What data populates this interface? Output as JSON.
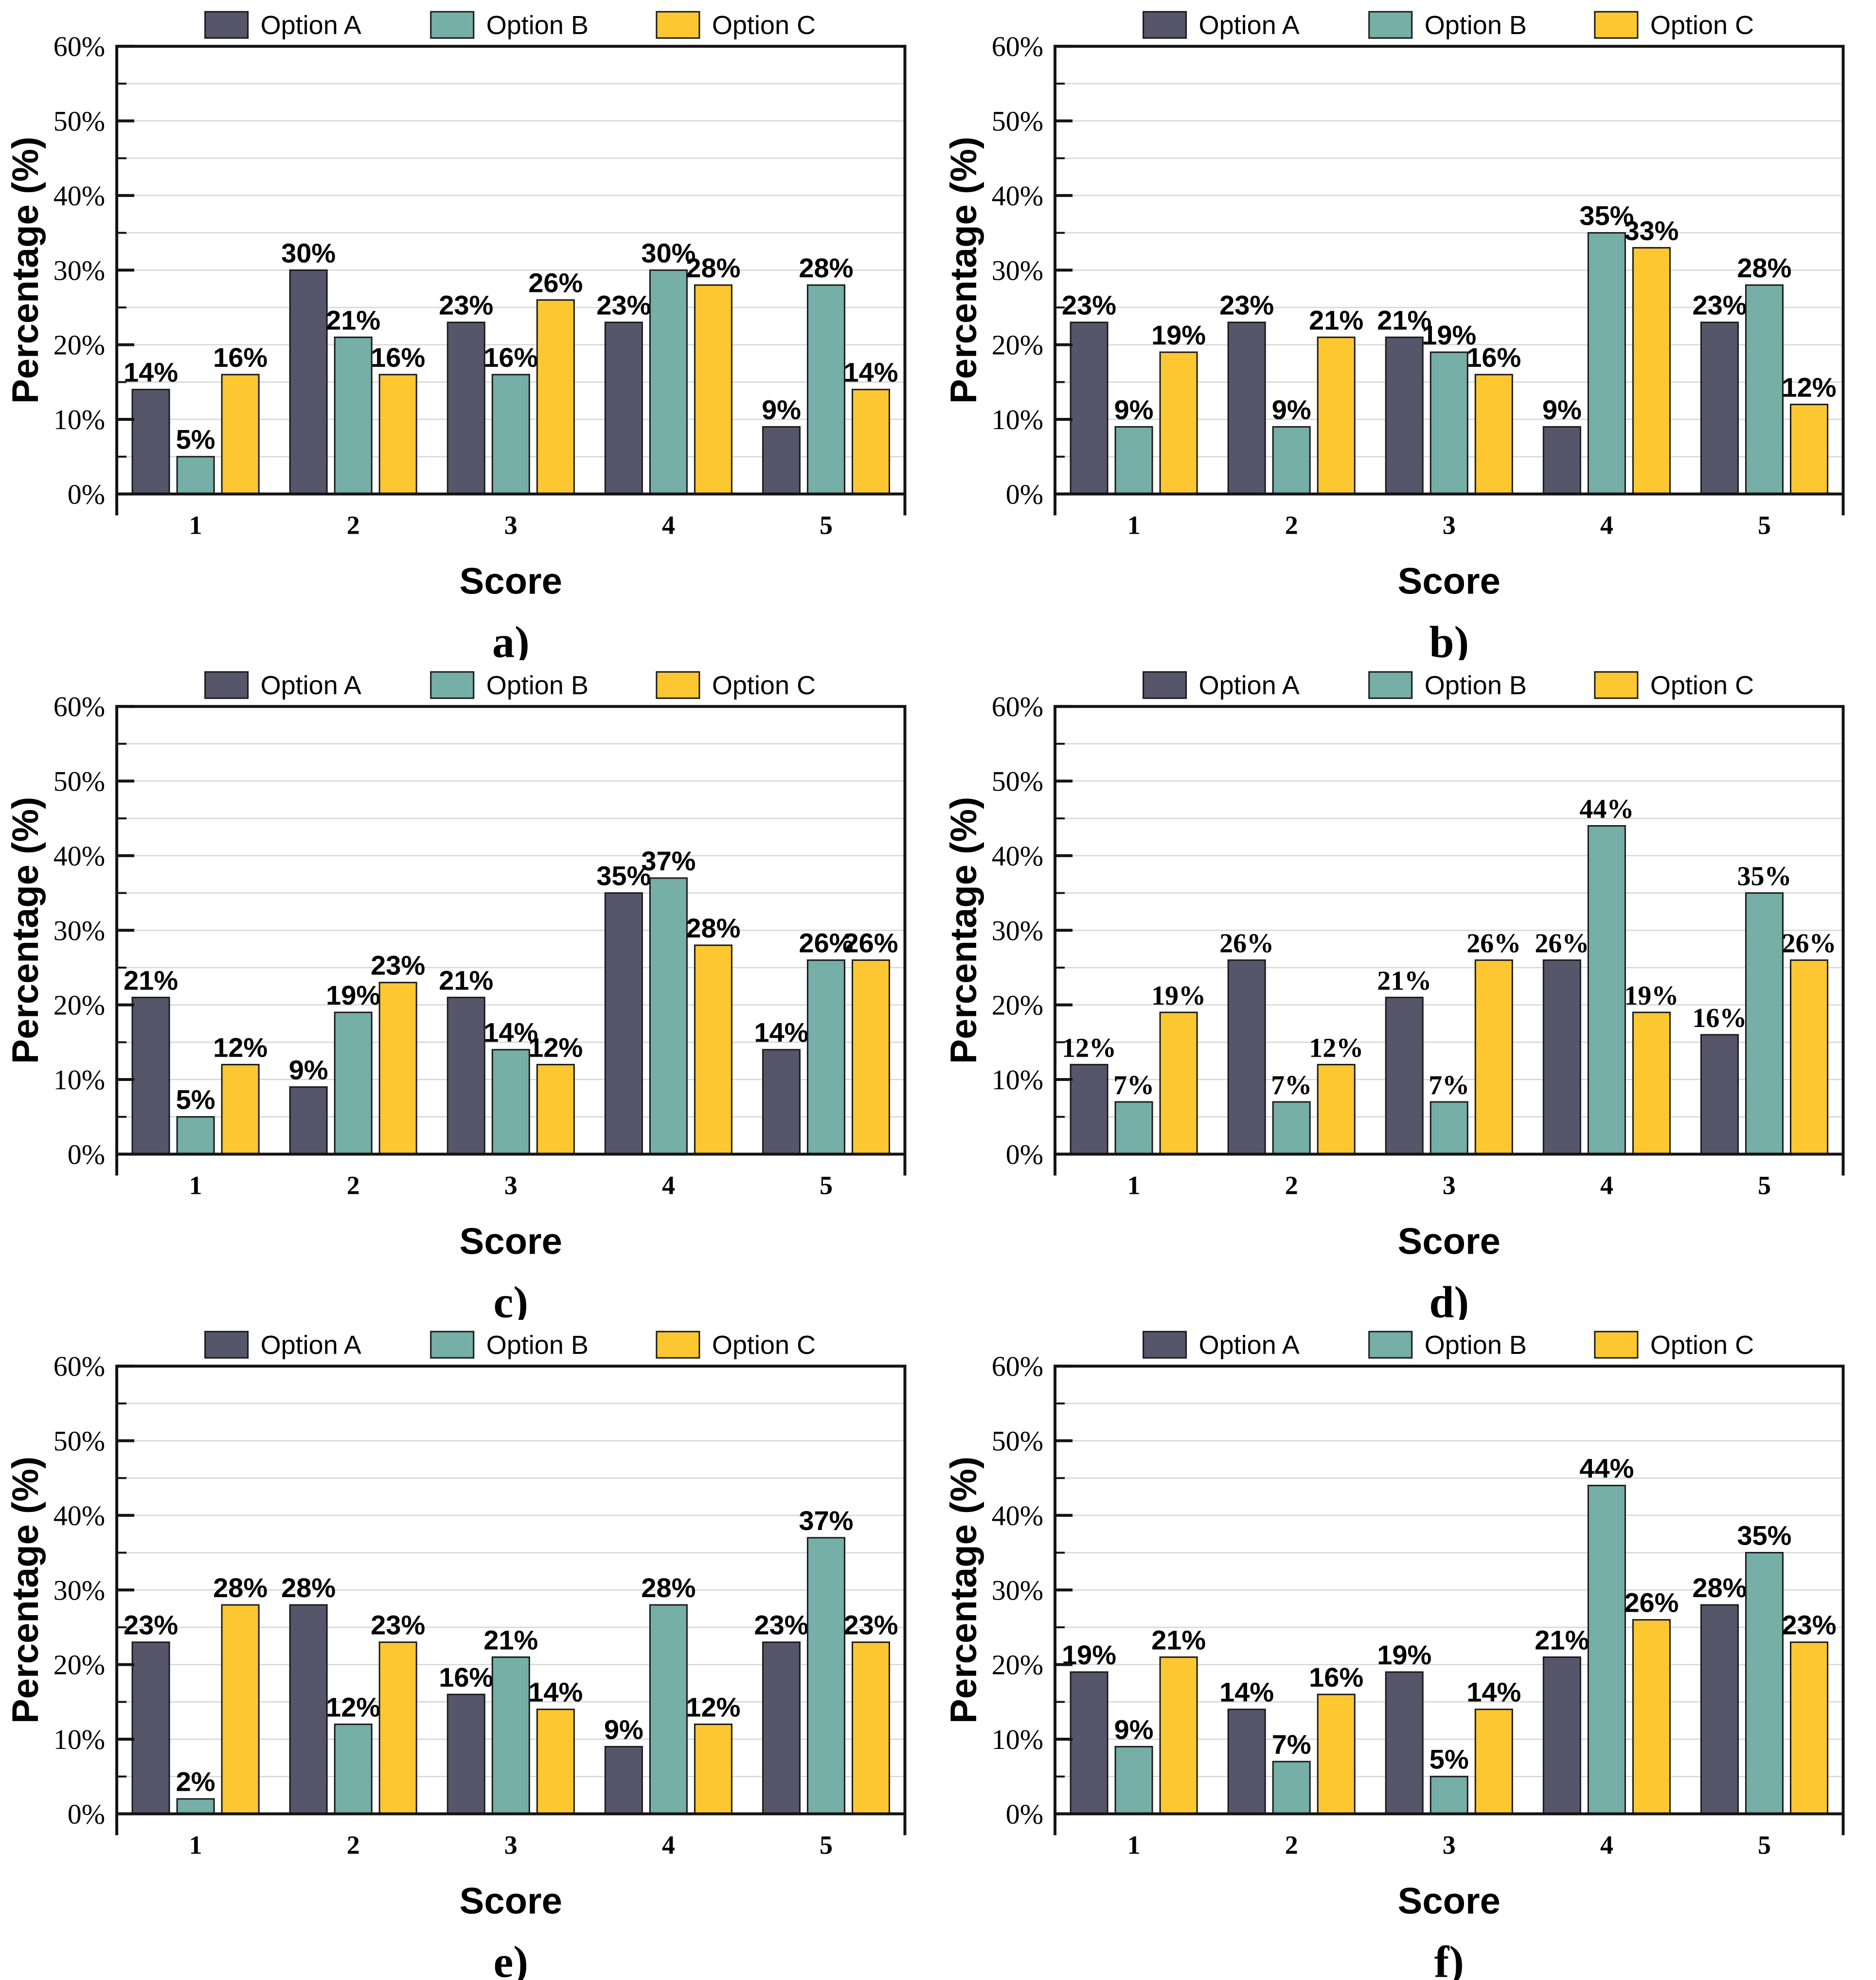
{
  "figure": {
    "xlabel": "Score",
    "ylabel": "Percentage (%)",
    "legend": [
      "Option A",
      "Option B",
      "Option C"
    ],
    "colors": {
      "option_a": "#56556A",
      "option_b": "#76AEA8",
      "option_c": "#FCC731",
      "bar_edge": "#1a1a1a",
      "axis": "#141414",
      "grid": "#d6d6d6",
      "text": "#000000"
    },
    "y_tick_labels": [
      "0%",
      "10%",
      "20%",
      "30%",
      "40%",
      "50%",
      "60%"
    ],
    "x_tick_labels": [
      "1",
      "2",
      "3",
      "4",
      "5"
    ],
    "ylim": [
      0,
      60
    ],
    "y_major_step": 10,
    "y_minor_step": 5,
    "grid": "on",
    "legend_position": "top"
  },
  "chart_data": [
    {
      "type": "bar",
      "panel": "a)",
      "title": "",
      "xlabel": "Score",
      "ylabel": "Percentage (%)",
      "ylim": [
        0,
        60
      ],
      "categories": [
        "1",
        "2",
        "3",
        "4",
        "5"
      ],
      "value_label_font": "sans",
      "series": [
        {
          "name": "Option A",
          "values": [
            14,
            30,
            23,
            23,
            9
          ]
        },
        {
          "name": "Option B",
          "values": [
            5,
            21,
            16,
            30,
            28
          ]
        },
        {
          "name": "Option C",
          "values": [
            16,
            16,
            26,
            28,
            14
          ]
        }
      ]
    },
    {
      "type": "bar",
      "panel": "b)",
      "title": "",
      "xlabel": "Score",
      "ylabel": "Percentage (%)",
      "ylim": [
        0,
        60
      ],
      "categories": [
        "1",
        "2",
        "3",
        "4",
        "5"
      ],
      "value_label_font": "sans",
      "series": [
        {
          "name": "Option A",
          "values": [
            23,
            23,
            21,
            9,
            23
          ]
        },
        {
          "name": "Option B",
          "values": [
            9,
            9,
            19,
            35,
            28
          ]
        },
        {
          "name": "Option C",
          "values": [
            19,
            21,
            16,
            33,
            12
          ]
        }
      ]
    },
    {
      "type": "bar",
      "panel": "c)",
      "title": "",
      "xlabel": "Score",
      "ylabel": "Percentage (%)",
      "ylim": [
        0,
        60
      ],
      "categories": [
        "1",
        "2",
        "3",
        "4",
        "5"
      ],
      "value_label_font": "sans",
      "series": [
        {
          "name": "Option A",
          "values": [
            21,
            9,
            21,
            35,
            14
          ]
        },
        {
          "name": "Option B",
          "values": [
            5,
            19,
            14,
            37,
            26
          ]
        },
        {
          "name": "Option C",
          "values": [
            12,
            23,
            12,
            28,
            26
          ]
        }
      ]
    },
    {
      "type": "bar",
      "panel": "d)",
      "title": "",
      "xlabel": "Score",
      "ylabel": "Percentage (%)",
      "ylim": [
        0,
        60
      ],
      "categories": [
        "1",
        "2",
        "3",
        "4",
        "5"
      ],
      "value_label_font": "serif",
      "series": [
        {
          "name": "Option A",
          "values": [
            12,
            26,
            21,
            26,
            16
          ]
        },
        {
          "name": "Option B",
          "values": [
            7,
            7,
            7,
            44,
            35
          ]
        },
        {
          "name": "Option C",
          "values": [
            19,
            12,
            26,
            19,
            26
          ]
        }
      ]
    },
    {
      "type": "bar",
      "panel": "e)",
      "title": "",
      "xlabel": "Score",
      "ylabel": "Percentage (%)",
      "ylim": [
        0,
        60
      ],
      "categories": [
        "1",
        "2",
        "3",
        "4",
        "5"
      ],
      "value_label_font": "sans",
      "series": [
        {
          "name": "Option A",
          "values": [
            23,
            28,
            16,
            9,
            23
          ]
        },
        {
          "name": "Option B",
          "values": [
            2,
            12,
            21,
            28,
            37
          ]
        },
        {
          "name": "Option C",
          "values": [
            28,
            23,
            14,
            12,
            23
          ]
        }
      ]
    },
    {
      "type": "bar",
      "panel": "f)",
      "title": "",
      "xlabel": "Score",
      "ylabel": "Percentage (%)",
      "ylim": [
        0,
        60
      ],
      "categories": [
        "1",
        "2",
        "3",
        "4",
        "5"
      ],
      "value_label_font": "sans",
      "series": [
        {
          "name": "Option A",
          "values": [
            19,
            14,
            19,
            21,
            28
          ]
        },
        {
          "name": "Option B",
          "values": [
            9,
            7,
            5,
            44,
            35
          ]
        },
        {
          "name": "Option C",
          "values": [
            21,
            16,
            14,
            26,
            23
          ]
        }
      ]
    }
  ]
}
